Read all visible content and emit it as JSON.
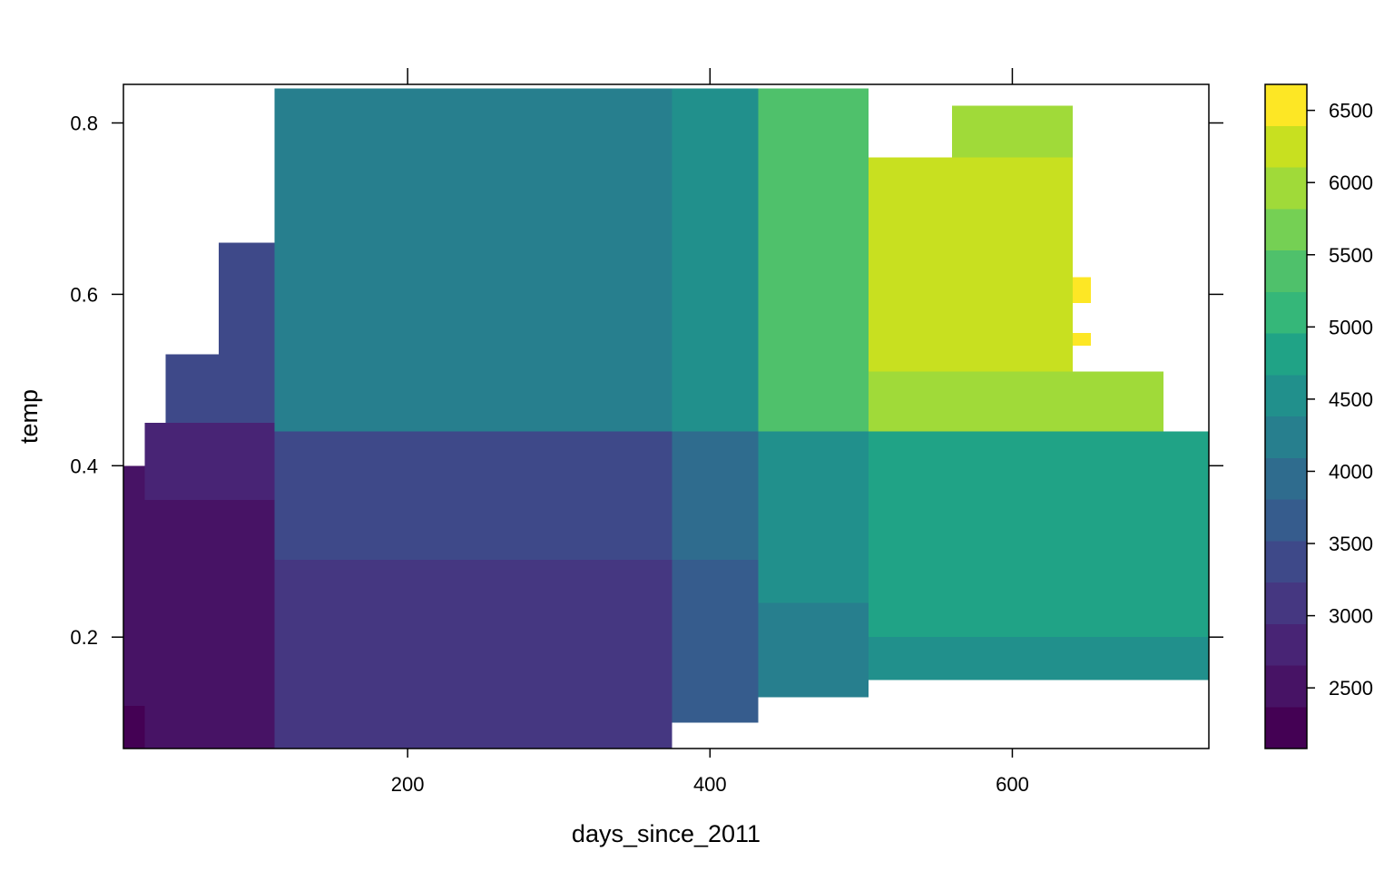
{
  "chart_data": {
    "type": "heatmap",
    "title": "",
    "xlabel": "days_since_2011",
    "ylabel": "temp",
    "xlim": [
      12,
      730
    ],
    "ylim": [
      0.07,
      0.845
    ],
    "x_ticks": [
      200,
      400,
      600
    ],
    "y_ticks": [
      0.2,
      0.4,
      0.6,
      0.8
    ],
    "x_tick_labels": [
      "200",
      "400",
      "600"
    ],
    "y_tick_labels": [
      "0.2",
      "0.4",
      "0.6",
      "0.8"
    ],
    "colorbar": {
      "range": [
        2080,
        6680
      ],
      "ticks": [
        2500,
        3000,
        3500,
        4000,
        4500,
        5000,
        5500,
        6000,
        6500
      ],
      "tick_labels": [
        "2500",
        "3000",
        "3500",
        "4000",
        "4500",
        "5000",
        "5500",
        "6000",
        "6500"
      ],
      "colors": [
        "#440154",
        "#471365",
        "#482475",
        "#453781",
        "#3E4989",
        "#365C8D",
        "#2F6C8E",
        "#277F8E",
        "#21908C",
        "#20A386",
        "#35B779",
        "#4FC16B",
        "#75D054",
        "#A0DA39",
        "#C8E020",
        "#FDE725"
      ]
    },
    "grid": false,
    "legend_position": "right",
    "cells_description": "Grid of prediction cells (x = days_since_2011, y = temp, value = predicted count) covering the observed data region.",
    "regions": [
      {
        "x": [
          12,
          26
        ],
        "y": [
          0.07,
          0.12
        ],
        "value": 2150
      },
      {
        "x": [
          12,
          26
        ],
        "y": [
          0.12,
          0.4
        ],
        "value": 2500
      },
      {
        "x": [
          26,
          112
        ],
        "y": [
          0.07,
          0.36
        ],
        "value": 2600
      },
      {
        "x": [
          26,
          112
        ],
        "y": [
          0.36,
          0.45
        ],
        "value": 2800
      },
      {
        "x": [
          40,
          112
        ],
        "y": [
          0.45,
          0.53
        ],
        "value": 3400
      },
      {
        "x": [
          75,
          112
        ],
        "y": [
          0.53,
          0.66
        ],
        "value": 3500
      },
      {
        "x": [
          112,
          375
        ],
        "y": [
          0.07,
          0.29
        ],
        "value": 3100
      },
      {
        "x": [
          112,
          375
        ],
        "y": [
          0.29,
          0.44
        ],
        "value": 3400
      },
      {
        "x": [
          112,
          375
        ],
        "y": [
          0.44,
          0.84
        ],
        "value": 4150
      },
      {
        "x": [
          375,
          432
        ],
        "y": [
          0.1,
          0.29
        ],
        "value": 3700
      },
      {
        "x": [
          375,
          432
        ],
        "y": [
          0.29,
          0.44
        ],
        "value": 3900
      },
      {
        "x": [
          375,
          432
        ],
        "y": [
          0.44,
          0.84
        ],
        "value": 4650
      },
      {
        "x": [
          432,
          505
        ],
        "y": [
          0.13,
          0.24
        ],
        "value": 4200
      },
      {
        "x": [
          432,
          505
        ],
        "y": [
          0.24,
          0.44
        ],
        "value": 4650
      },
      {
        "x": [
          432,
          505
        ],
        "y": [
          0.44,
          0.84
        ],
        "value": 5500
      },
      {
        "x": [
          505,
          730
        ],
        "y": [
          0.15,
          0.2
        ],
        "value": 4550
      },
      {
        "x": [
          505,
          730
        ],
        "y": [
          0.2,
          0.44
        ],
        "value": 4900
      },
      {
        "x": [
          505,
          700
        ],
        "y": [
          0.44,
          0.51
        ],
        "value": 5850
      },
      {
        "x": [
          505,
          640
        ],
        "y": [
          0.51,
          0.76
        ],
        "value": 6300
      },
      {
        "x": [
          560,
          640
        ],
        "y": [
          0.76,
          0.82
        ],
        "value": 6050
      },
      {
        "x": [
          640,
          652
        ],
        "y": [
          0.59,
          0.62
        ],
        "value": 6600
      },
      {
        "x": [
          640,
          652
        ],
        "y": [
          0.54,
          0.555
        ],
        "value": 6600
      }
    ]
  }
}
